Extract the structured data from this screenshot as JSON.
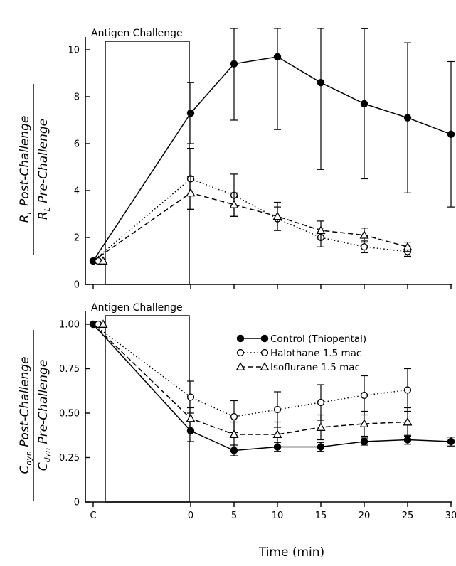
{
  "chart_data": [
    {
      "type": "line",
      "panel": "top",
      "ylabel": "R_L Post-Challenge / R_L Pre-Challenge",
      "ylabel_parts": {
        "num_var": "R",
        "num_sub": "L",
        "num_text": "Post-Challenge",
        "den_var": "R",
        "den_sub": "L",
        "den_text": "Pre-Challenge"
      },
      "ylim": [
        0,
        10
      ],
      "yticks": [
        0,
        2,
        4,
        6,
        8,
        10
      ],
      "ytick_labels": [
        "0",
        "2",
        "4",
        "6",
        "8",
        "10"
      ],
      "annotation": "Antigen Challenge",
      "series": [
        {
          "key": "control",
          "style": "solid-filled-circle",
          "x": [
            "C",
            0,
            5,
            10,
            15,
            20,
            25,
            30
          ],
          "values": [
            1.0,
            7.3,
            9.4,
            9.7,
            8.6,
            7.7,
            7.1,
            6.4
          ],
          "err": [
            0,
            1.3,
            2.4,
            3.1,
            3.7,
            3.2,
            3.2,
            3.1
          ]
        },
        {
          "key": "halothane",
          "style": "dotted-open-circle",
          "x": [
            "C",
            0,
            5,
            10,
            15,
            20,
            25
          ],
          "values": [
            1.0,
            4.5,
            3.8,
            2.8,
            2.0,
            1.6,
            1.4
          ],
          "err": [
            0,
            1.3,
            0.9,
            0.5,
            0.4,
            0.25,
            0.2
          ]
        },
        {
          "key": "isoflurane",
          "style": "dashed-open-triangle",
          "x": [
            "C",
            0,
            5,
            10,
            15,
            20,
            25
          ],
          "values": [
            1.0,
            3.9,
            3.4,
            2.9,
            2.3,
            2.1,
            1.6
          ],
          "err": [
            0,
            0.7,
            0.5,
            0.6,
            0.4,
            0.3,
            0.2
          ]
        }
      ]
    },
    {
      "type": "line",
      "panel": "bottom",
      "ylabel": "C_dyn Post-Challenge / C_dyn Pre-Challenge",
      "ylabel_parts": {
        "num_var": "C",
        "num_sub": "dyn",
        "num_text": "Post-Challenge",
        "den_var": "C",
        "den_sub": "dyn",
        "den_text": "Pre-Challenge"
      },
      "xlabel": "Time (min)",
      "ylim": [
        0,
        1.0
      ],
      "yticks": [
        0,
        0.25,
        0.5,
        0.75,
        1.0
      ],
      "ytick_labels": [
        "0",
        "0.25",
        "0.50",
        "0.75",
        "1.00"
      ],
      "xtick_labels": [
        "C",
        "0",
        "5",
        "10",
        "15",
        "20",
        "25",
        "30"
      ],
      "annotation": "Antigen Challenge",
      "legend": [
        {
          "label": "Control (Thiopental)",
          "style": "solid-filled-circle"
        },
        {
          "label": "Halothane  1.5 mac",
          "style": "dotted-open-circle"
        },
        {
          "label": "Isoflurane  1.5 mac",
          "style": "dashed-open-triangle"
        }
      ],
      "legend_position": "top-right",
      "series": [
        {
          "key": "control",
          "style": "solid-filled-circle",
          "x": [
            "C",
            0,
            5,
            10,
            15,
            20,
            25,
            30
          ],
          "values": [
            1.0,
            0.4,
            0.29,
            0.31,
            0.31,
            0.34,
            0.35,
            0.34
          ],
          "err": [
            0,
            0.06,
            0.03,
            0.025,
            0.025,
            0.02,
            0.025,
            0.025
          ]
        },
        {
          "key": "halothane",
          "style": "dotted-open-circle",
          "x": [
            "C",
            0,
            5,
            10,
            15,
            20,
            25
          ],
          "values": [
            1.0,
            0.59,
            0.48,
            0.52,
            0.56,
            0.6,
            0.63
          ],
          "err": [
            0,
            0.09,
            0.09,
            0.1,
            0.1,
            0.11,
            0.12
          ]
        },
        {
          "key": "isoflurane",
          "style": "dashed-open-triangle",
          "x": [
            "C",
            0,
            5,
            10,
            15,
            20,
            25
          ],
          "values": [
            1.0,
            0.47,
            0.38,
            0.38,
            0.42,
            0.44,
            0.45
          ],
          "err": [
            0,
            0.06,
            0.07,
            0.07,
            0.07,
            0.07,
            0.08
          ]
        }
      ]
    }
  ]
}
